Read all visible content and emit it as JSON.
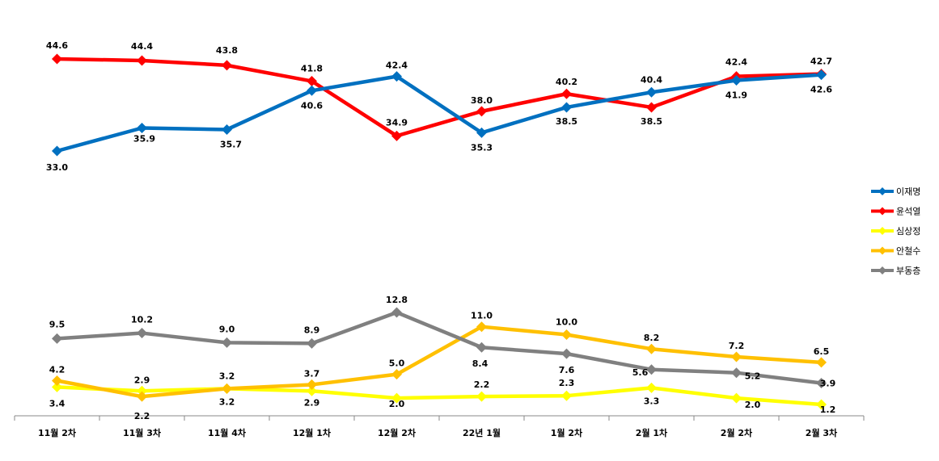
{
  "chart_data": {
    "type": "line",
    "categories": [
      "11월 2차",
      "11월 3차",
      "11월 4차",
      "12월 1차",
      "12월 2차",
      "22년 1월",
      "1월 2차",
      "2월 1차",
      "2월 2차",
      "2월 3차"
    ],
    "grid": false,
    "legend_position": "right",
    "series": [
      {
        "name": "이재명",
        "color": "#0070C0",
        "values": [
          33.0,
          35.9,
          35.7,
          40.6,
          42.4,
          35.3,
          38.5,
          40.4,
          41.9,
          42.6
        ],
        "labels": [
          "33.0",
          "35.9",
          "35.7",
          "40.6",
          "42.4",
          "35.3",
          "38.5",
          "40.4",
          "41.9",
          "42.6"
        ]
      },
      {
        "name": "윤석열",
        "color": "#FF0000",
        "values": [
          44.6,
          44.4,
          43.8,
          41.8,
          34.9,
          38.0,
          40.2,
          38.5,
          42.4,
          42.7
        ],
        "labels": [
          "44.6",
          "44.4",
          "43.8",
          "41.8",
          "34.9",
          "38.0",
          "40.2",
          "38.5",
          "42.4",
          "42.7"
        ]
      },
      {
        "name": "심상정",
        "color": "#FFFF00",
        "values": [
          3.4,
          2.9,
          3.2,
          2.9,
          2.0,
          2.2,
          2.3,
          3.3,
          2.0,
          1.2
        ],
        "labels": [
          "3.4",
          "2.9",
          "3.2",
          "2.9",
          "2.0",
          "2.2",
          "2.3",
          "3.3",
          "2.0",
          "1.2"
        ]
      },
      {
        "name": "안철수",
        "color": "#FFC000",
        "values": [
          4.2,
          2.2,
          3.2,
          3.7,
          5.0,
          11.0,
          10.0,
          8.2,
          7.2,
          6.5
        ],
        "labels": [
          "4.2",
          "2.2",
          "3.2",
          "3.7",
          "5.0",
          "11.0",
          "10.0",
          "8.2",
          "7.2",
          "6.5"
        ]
      },
      {
        "name": "부동층",
        "color": "#808080",
        "values": [
          9.5,
          10.2,
          9.0,
          8.9,
          12.8,
          8.4,
          7.6,
          5.6,
          5.2,
          3.9
        ],
        "labels": [
          "9.5",
          "10.2",
          "9.0",
          "8.9",
          "12.8",
          "8.4",
          "7.6",
          "5.6",
          "5.2",
          "3.9"
        ]
      }
    ]
  }
}
